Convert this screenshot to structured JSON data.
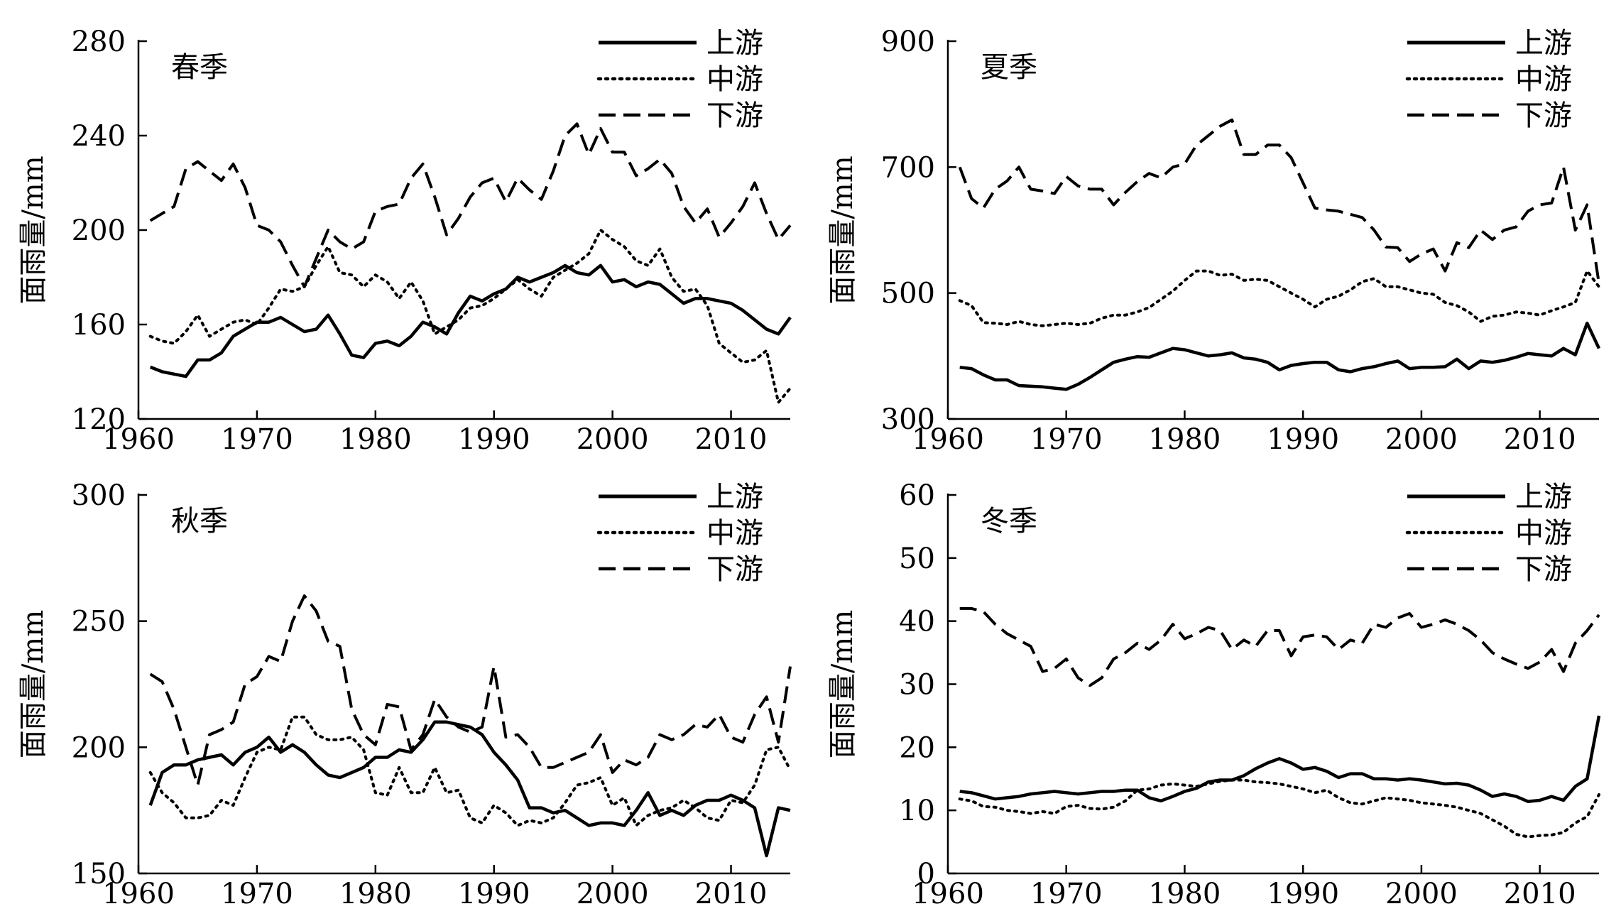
{
  "chart_data": [
    {
      "type": "line",
      "title": "春季",
      "ylabel": "面雨量/mm",
      "xlim": [
        1960,
        2015
      ],
      "ylim": [
        120,
        280
      ],
      "xticks": [
        1960,
        1970,
        1980,
        1990,
        2000,
        2010
      ],
      "yticks": [
        120,
        160,
        200,
        240,
        280
      ],
      "legend_position": "top-right",
      "x": [
        1961,
        1962,
        1963,
        1964,
        1965,
        1966,
        1967,
        1968,
        1969,
        1970,
        1971,
        1972,
        1973,
        1974,
        1975,
        1976,
        1977,
        1978,
        1979,
        1980,
        1981,
        1982,
        1983,
        1984,
        1985,
        1986,
        1987,
        1988,
        1989,
        1990,
        1991,
        1992,
        1993,
        1994,
        1995,
        1996,
        1997,
        1998,
        1999,
        2000,
        2001,
        2002,
        2003,
        2004,
        2005,
        2006,
        2007,
        2008,
        2009,
        2010,
        2011,
        2012,
        2013,
        2014,
        2015
      ],
      "series": [
        {
          "name": "上游",
          "style": "solid",
          "values": [
            142,
            140,
            139,
            138,
            145,
            145,
            148,
            155,
            158,
            161,
            161,
            163,
            160,
            157,
            158,
            164,
            156,
            147,
            146,
            152,
            153,
            151,
            155,
            161,
            159,
            156,
            165,
            172,
            170,
            173,
            175,
            180,
            178,
            180,
            182,
            185,
            182,
            181,
            185,
            178,
            179,
            176,
            178,
            177,
            173,
            169,
            171,
            171,
            170,
            169,
            166,
            162,
            158,
            156,
            163
          ]
        },
        {
          "name": "中游",
          "style": "dotted",
          "values": [
            155,
            153,
            152,
            157,
            164,
            155,
            158,
            161,
            162,
            160,
            167,
            175,
            174,
            176,
            185,
            193,
            182,
            181,
            176,
            181,
            178,
            171,
            178,
            170,
            156,
            159,
            162,
            167,
            168,
            171,
            175,
            179,
            175,
            172,
            180,
            183,
            186,
            190,
            200,
            196,
            193,
            187,
            185,
            192,
            180,
            174,
            175,
            168,
            152,
            148,
            144,
            145,
            149,
            127,
            133
          ]
        },
        {
          "name": "下游",
          "style": "dashed",
          "values": [
            204,
            207,
            210,
            226,
            229,
            225,
            221,
            228,
            218,
            202,
            200,
            195,
            185,
            176,
            188,
            200,
            195,
            192,
            195,
            208,
            210,
            211,
            222,
            228,
            214,
            198,
            205,
            214,
            220,
            222,
            212,
            222,
            217,
            213,
            225,
            240,
            245,
            232,
            243,
            233,
            233,
            223,
            226,
            230,
            224,
            210,
            203,
            209,
            197,
            203,
            210,
            220,
            207,
            196,
            202
          ]
        }
      ]
    },
    {
      "type": "line",
      "title": "夏季",
      "ylabel": "面雨量/mm",
      "xlim": [
        1960,
        2015
      ],
      "ylim": [
        300,
        900
      ],
      "xticks": [
        1960,
        1970,
        1980,
        1990,
        2000,
        2010
      ],
      "yticks": [
        300,
        500,
        700,
        900
      ],
      "legend_position": "top-right",
      "x": [
        1961,
        1962,
        1963,
        1964,
        1965,
        1966,
        1967,
        1968,
        1969,
        1970,
        1971,
        1972,
        1973,
        1974,
        1975,
        1976,
        1977,
        1978,
        1979,
        1980,
        1981,
        1982,
        1983,
        1984,
        1985,
        1986,
        1987,
        1988,
        1989,
        1990,
        1991,
        1992,
        1993,
        1994,
        1995,
        1996,
        1997,
        1998,
        1999,
        2000,
        2001,
        2002,
        2003,
        2004,
        2005,
        2006,
        2007,
        2008,
        2009,
        2010,
        2011,
        2012,
        2013,
        2014,
        2015
      ],
      "series": [
        {
          "name": "上游",
          "style": "solid",
          "values": [
            382,
            380,
            370,
            362,
            362,
            353,
            352,
            351,
            349,
            347,
            355,
            366,
            378,
            390,
            395,
            399,
            398,
            405,
            412,
            410,
            405,
            400,
            402,
            405,
            397,
            395,
            390,
            378,
            385,
            388,
            390,
            390,
            378,
            375,
            380,
            383,
            388,
            392,
            380,
            382,
            382,
            383,
            395,
            380,
            392,
            390,
            393,
            398,
            404,
            402,
            400,
            412,
            402,
            452,
            412
          ]
        },
        {
          "name": "中游",
          "style": "dotted",
          "values": [
            488,
            480,
            453,
            452,
            450,
            455,
            450,
            448,
            450,
            452,
            450,
            452,
            460,
            465,
            465,
            470,
            477,
            490,
            503,
            520,
            535,
            535,
            528,
            530,
            520,
            522,
            520,
            510,
            500,
            490,
            478,
            490,
            495,
            505,
            518,
            523,
            510,
            510,
            505,
            500,
            498,
            485,
            480,
            470,
            455,
            463,
            465,
            470,
            468,
            465,
            472,
            478,
            485,
            535,
            510
          ]
        },
        {
          "name": "下游",
          "style": "dashed",
          "values": [
            700,
            650,
            635,
            665,
            678,
            700,
            665,
            662,
            658,
            685,
            670,
            665,
            665,
            640,
            660,
            677,
            690,
            683,
            700,
            705,
            735,
            750,
            765,
            775,
            720,
            720,
            735,
            735,
            715,
            675,
            635,
            632,
            630,
            625,
            620,
            600,
            573,
            572,
            550,
            562,
            570,
            535,
            580,
            572,
            600,
            585,
            600,
            605,
            630,
            640,
            643,
            700,
            600,
            640,
            515
          ]
        }
      ]
    },
    {
      "type": "line",
      "title": "秋季",
      "ylabel": "面雨量/mm",
      "xlim": [
        1960,
        2015
      ],
      "ylim": [
        150,
        300
      ],
      "xticks": [
        1960,
        1970,
        1980,
        1990,
        2000,
        2010
      ],
      "yticks": [
        150,
        200,
        250,
        300
      ],
      "legend_position": "top-right",
      "x": [
        1961,
        1962,
        1963,
        1964,
        1965,
        1966,
        1967,
        1968,
        1969,
        1970,
        1971,
        1972,
        1973,
        1974,
        1975,
        1976,
        1977,
        1978,
        1979,
        1980,
        1981,
        1982,
        1983,
        1984,
        1985,
        1986,
        1987,
        1988,
        1989,
        1990,
        1991,
        1992,
        1993,
        1994,
        1995,
        1996,
        1997,
        1998,
        1999,
        2000,
        2001,
        2002,
        2003,
        2004,
        2005,
        2006,
        2007,
        2008,
        2009,
        2010,
        2011,
        2012,
        2013,
        2014,
        2015
      ],
      "series": [
        {
          "name": "上游",
          "style": "solid",
          "values": [
            177,
            190,
            193,
            193,
            195,
            196,
            197,
            193,
            198,
            200,
            204,
            198,
            201,
            198,
            193,
            189,
            188,
            190,
            192,
            196,
            196,
            199,
            198,
            203,
            210,
            210,
            209,
            208,
            205,
            198,
            193,
            187,
            176,
            176,
            174,
            175,
            172,
            169,
            170,
            170,
            169,
            175,
            182,
            173,
            175,
            173,
            177,
            179,
            179,
            181,
            179,
            176,
            157,
            176,
            175
          ]
        },
        {
          "name": "中游",
          "style": "dotted",
          "values": [
            190,
            182,
            178,
            172,
            172,
            173,
            179,
            177,
            188,
            198,
            200,
            199,
            212,
            212,
            205,
            203,
            203,
            204,
            199,
            182,
            181,
            192,
            182,
            182,
            192,
            182,
            183,
            172,
            170,
            177,
            174,
            169,
            171,
            170,
            172,
            178,
            185,
            186,
            188,
            177,
            180,
            169,
            173,
            175,
            176,
            179,
            176,
            172,
            171,
            179,
            178,
            185,
            199,
            200,
            191
          ]
        },
        {
          "name": "下游",
          "style": "dashed",
          "values": [
            229,
            226,
            215,
            200,
            185,
            205,
            207,
            210,
            225,
            228,
            236,
            234,
            250,
            260,
            254,
            242,
            240,
            215,
            205,
            201,
            217,
            216,
            199,
            205,
            219,
            212,
            208,
            206,
            208,
            232,
            204,
            205,
            200,
            192,
            192,
            194,
            196,
            198,
            205,
            190,
            195,
            193,
            196,
            205,
            203,
            205,
            209,
            208,
            213,
            204,
            202,
            213,
            220,
            202,
            232
          ]
        }
      ]
    },
    {
      "type": "line",
      "title": "冬季",
      "ylabel": "面雨量/mm",
      "xlim": [
        1960,
        2015
      ],
      "ylim": [
        0,
        60
      ],
      "xticks": [
        1960,
        1970,
        1980,
        1990,
        2000,
        2010
      ],
      "yticks": [
        0,
        10,
        20,
        30,
        40,
        50,
        60
      ],
      "legend_position": "top-right",
      "x": [
        1961,
        1962,
        1963,
        1964,
        1965,
        1966,
        1967,
        1968,
        1969,
        1970,
        1971,
        1972,
        1973,
        1974,
        1975,
        1976,
        1977,
        1978,
        1979,
        1980,
        1981,
        1982,
        1983,
        1984,
        1985,
        1986,
        1987,
        1988,
        1989,
        1990,
        1991,
        1992,
        1993,
        1994,
        1995,
        1996,
        1997,
        1998,
        1999,
        2000,
        2001,
        2002,
        2003,
        2004,
        2005,
        2006,
        2007,
        2008,
        2009,
        2010,
        2011,
        2012,
        2013,
        2014,
        2015
      ],
      "series": [
        {
          "name": "上游",
          "style": "solid",
          "values": [
            13,
            12.8,
            12.3,
            11.8,
            12,
            12.2,
            12.6,
            12.8,
            13,
            12.8,
            12.6,
            12.8,
            13,
            13,
            13.2,
            13.2,
            12,
            11.5,
            12.2,
            13,
            13.5,
            14.5,
            14.8,
            14.8,
            15.5,
            16.6,
            17.5,
            18.2,
            17.5,
            16.5,
            16.8,
            16.2,
            15.2,
            15.8,
            15.8,
            15,
            15,
            14.8,
            15,
            14.8,
            14.5,
            14.2,
            14.3,
            14,
            13.2,
            12.2,
            12.6,
            12.2,
            11.4,
            11.6,
            12.2,
            11.6,
            13.8,
            15,
            25
          ]
        },
        {
          "name": "中游",
          "style": "dotted",
          "values": [
            11.8,
            11.5,
            10.6,
            10.5,
            10,
            9.8,
            9.5,
            9.8,
            9.5,
            10.6,
            10.8,
            10.3,
            10.2,
            10.5,
            11.5,
            13.2,
            13.4,
            14,
            14.2,
            14,
            13.8,
            14.2,
            14.6,
            14.8,
            14.8,
            14.5,
            14.4,
            14.2,
            13.8,
            13.4,
            12.8,
            13.2,
            12,
            11.2,
            11,
            11.5,
            12,
            11.8,
            11.6,
            11.2,
            11,
            10.8,
            10.5,
            10,
            9.5,
            8.5,
            7.5,
            6.2,
            5.8,
            6,
            6.1,
            6.5,
            8,
            9,
            12.5
          ]
        },
        {
          "name": "下游",
          "style": "dashed",
          "values": [
            42,
            42,
            41.5,
            39.5,
            38,
            37,
            36,
            32,
            32.5,
            34,
            31,
            29.8,
            31,
            34,
            35,
            36.5,
            35.5,
            37,
            39.5,
            37.2,
            38,
            39,
            38.5,
            35.5,
            37,
            36,
            38.5,
            38.5,
            34.5,
            37.5,
            37.8,
            37.5,
            35.5,
            37,
            36.5,
            39.5,
            39,
            40.5,
            41.2,
            39,
            39.5,
            40.2,
            39.5,
            38.5,
            37,
            35,
            34,
            33.2,
            32.5,
            33.5,
            35.5,
            32,
            36.5,
            38.5,
            41
          ]
        }
      ]
    }
  ]
}
